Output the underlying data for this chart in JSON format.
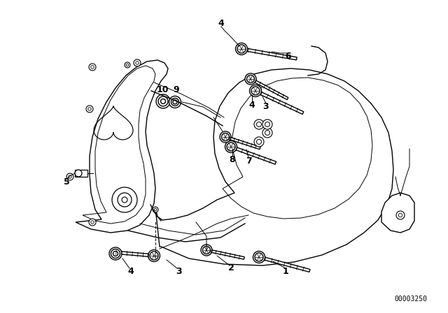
{
  "bg_color": "#ffffff",
  "line_color": "#000000",
  "part_number": "00003250",
  "lw_main": 1.0,
  "lw_thin": 0.7,
  "label_fs": 9
}
